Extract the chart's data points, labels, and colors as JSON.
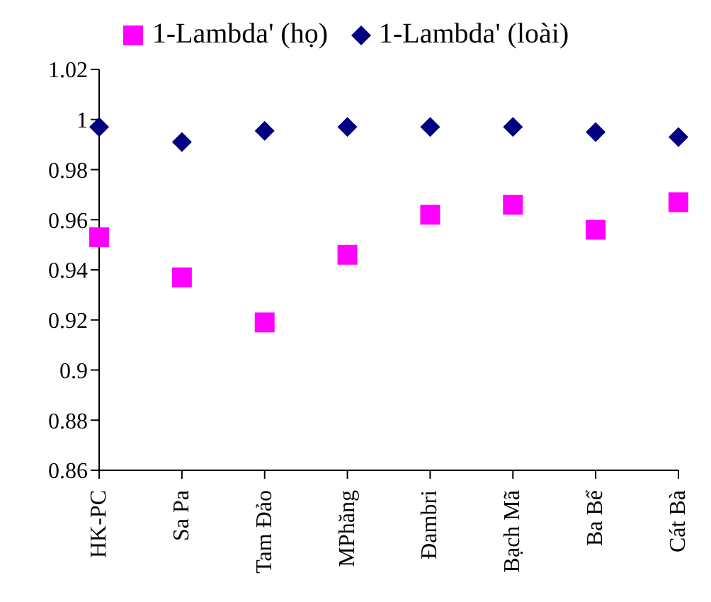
{
  "chart_data": {
    "type": "scatter",
    "categories": [
      "HK-PC",
      "Sa Pa",
      "Tam Đảo",
      "MPhăng",
      "Đambri",
      "Bạch Mã",
      "Ba Bể",
      "Cát Bà"
    ],
    "series": [
      {
        "name": "1-Lambda' (họ)",
        "color": "#ff00ff",
        "marker": "square",
        "values": [
          0.953,
          0.937,
          0.919,
          0.946,
          0.962,
          0.966,
          0.956,
          0.967
        ]
      },
      {
        "name": "1-Lambda' (loài)",
        "color": "#000080",
        "marker": "diamond",
        "values": [
          0.997,
          0.991,
          0.9955,
          0.997,
          0.997,
          0.997,
          0.995,
          0.993
        ]
      }
    ],
    "ylim": [
      0.86,
      1.02
    ],
    "yticks": [
      0.86,
      0.88,
      0.9,
      0.92,
      0.94,
      0.96,
      0.98,
      1,
      1.02
    ],
    "grid": false,
    "legend": "top"
  }
}
